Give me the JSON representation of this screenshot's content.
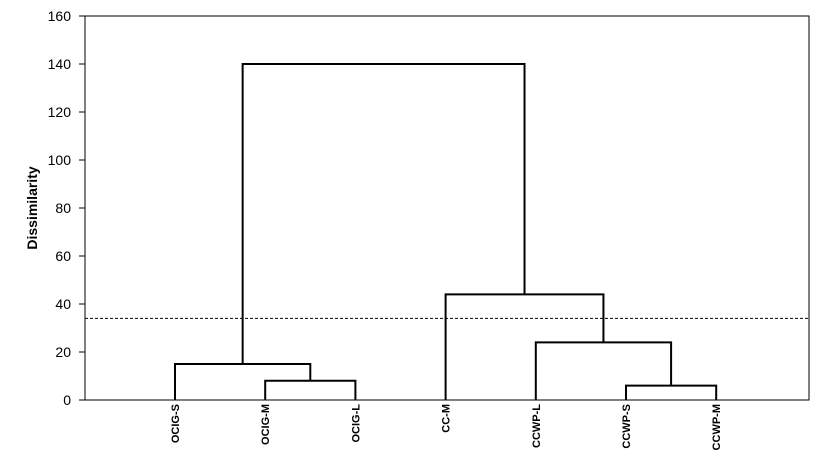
{
  "chart_data": {
    "type": "dendrogram",
    "title": "",
    "xlabel": "",
    "ylabel": "Dissimilarity",
    "ylim": [
      0,
      160
    ],
    "yticks": [
      0,
      20,
      40,
      60,
      80,
      100,
      120,
      140,
      160
    ],
    "ytick_labels": [
      "0",
      "20",
      "40",
      "60",
      "80",
      "100",
      "120",
      "140",
      "160"
    ],
    "leaves": [
      "OCIG-S",
      "OCIG-M",
      "OCIG-L",
      "CC-M",
      "CCWP-L",
      "CCWP-S",
      "CCWP-M"
    ],
    "merges": [
      {
        "left": "OCIG-M",
        "right": "OCIG-L",
        "height": 8
      },
      {
        "left": "OCIG-S",
        "right": "OCIG-M+OCIG-L",
        "height": 15
      },
      {
        "left": "CCWP-S",
        "right": "CCWP-M",
        "height": 6
      },
      {
        "left": "CCWP-L",
        "right": "CCWP-S+CCWP-M",
        "height": 24
      },
      {
        "left": "CC-M",
        "right": "CCWP-L+CCWP-S+CCWP-M",
        "height": 44
      },
      {
        "left": "OCIG cluster",
        "right": "CC cluster",
        "height": 140
      }
    ],
    "truncation_line": 34,
    "grid": false,
    "legend": "none",
    "colors": {
      "lines": "#000000",
      "cut_line": "#000000",
      "background": "#ffffff"
    }
  }
}
